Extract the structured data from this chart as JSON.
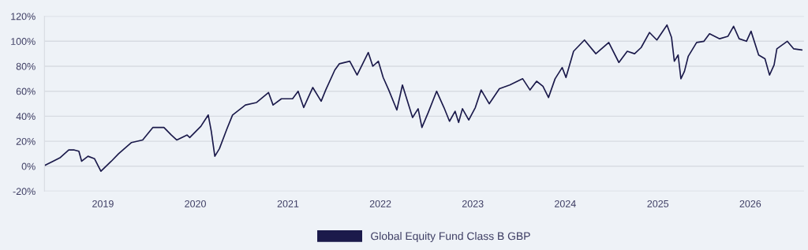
{
  "chart_data": {
    "type": "line",
    "grid": "y",
    "legend": "bottom",
    "xlim": [
      "2018-05-15",
      "2026-08-01"
    ],
    "xticks": [
      {
        "value": "2019-01-01",
        "label": "2019"
      },
      {
        "value": "2020-01-01",
        "label": "2020"
      },
      {
        "value": "2021-01-01",
        "label": "2021"
      },
      {
        "value": "2022-01-01",
        "label": "2022"
      },
      {
        "value": "2023-01-01",
        "label": "2023"
      },
      {
        "value": "2024-01-01",
        "label": "2024"
      },
      {
        "value": "2025-01-01",
        "label": "2025"
      },
      {
        "value": "2026-01-01",
        "label": "2026"
      }
    ],
    "ylim": [
      -20,
      120
    ],
    "yticks": [
      {
        "value": -20,
        "label": "-20%"
      },
      {
        "value": 0,
        "label": "0%"
      },
      {
        "value": 20,
        "label": "20%"
      },
      {
        "value": 40,
        "label": "40%"
      },
      {
        "value": 60,
        "label": "60%"
      },
      {
        "value": 80,
        "label": "80%"
      },
      {
        "value": 100,
        "label": "100%"
      },
      {
        "value": 120,
        "label": "120%"
      }
    ],
    "x": [
      "2018-05-16",
      "2018-06-18",
      "2018-07-17",
      "2018-08-19",
      "2018-09-10",
      "2018-09-28",
      "2018-10-09",
      "2018-11-03",
      "2018-11-29",
      "2018-12-24",
      "2019-02-03",
      "2019-03-04",
      "2019-04-24",
      "2019-06-07",
      "2019-07-17",
      "2019-08-30",
      "2019-09-28",
      "2019-10-20",
      "2019-11-29",
      "2019-12-10",
      "2020-01-23",
      "2020-02-21",
      "2020-03-04",
      "2020-03-18",
      "2020-04-05",
      "2020-05-05",
      "2020-05-27",
      "2020-07-17",
      "2020-08-30",
      "2020-10-16",
      "2020-11-03",
      "2020-12-06",
      "2021-01-19",
      "2021-02-10",
      "2021-03-04",
      "2021-04-09",
      "2021-05-12",
      "2021-05-30",
      "2021-07-05",
      "2021-07-23",
      "2021-09-02",
      "2021-10-01",
      "2021-11-14",
      "2021-12-02",
      "2021-12-24",
      "2022-01-12",
      "2022-02-03",
      "2022-03-07",
      "2022-03-29",
      "2022-05-08",
      "2022-05-30",
      "2022-06-14",
      "2022-07-09",
      "2022-08-11",
      "2022-09-09",
      "2022-10-01",
      "2022-10-23",
      "2022-11-06",
      "2022-11-21",
      "2022-12-16",
      "2023-01-11",
      "2023-02-03",
      "2023-03-07",
      "2023-04-16",
      "2023-05-27",
      "2023-07-17",
      "2023-08-15",
      "2023-09-10",
      "2023-10-05",
      "2023-10-27",
      "2023-11-22",
      "2023-12-20",
      "2024-01-04",
      "2024-02-03",
      "2024-03-17",
      "2024-05-01",
      "2024-06-21",
      "2024-07-31",
      "2024-09-02",
      "2024-10-01",
      "2024-10-27",
      "2024-11-29",
      "2024-12-28",
      "2025-02-06",
      "2025-02-24",
      "2025-03-07",
      "2025-03-22",
      "2025-04-02",
      "2025-04-16",
      "2025-05-01",
      "2025-06-03",
      "2025-07-02",
      "2025-07-24",
      "2025-09-02",
      "2025-10-05",
      "2025-10-27",
      "2025-11-18",
      "2025-12-17",
      "2026-01-04",
      "2026-02-03",
      "2026-02-28",
      "2026-03-18",
      "2026-04-05",
      "2026-04-16",
      "2026-05-27",
      "2026-06-21",
      "2026-07-24"
    ],
    "series": [
      {
        "name": "Global Equity Fund Class B GBP",
        "color": "#1b1a4b",
        "values": [
          0.6,
          4,
          7,
          13,
          13,
          12,
          4,
          8,
          6,
          -4,
          4,
          10,
          19,
          21,
          31,
          31,
          25,
          21,
          25,
          23,
          32,
          41,
          28,
          8,
          14,
          30,
          41,
          49,
          51,
          59,
          49,
          54,
          54,
          60,
          47,
          63,
          52,
          61,
          77,
          82,
          84,
          73,
          91,
          80,
          84,
          71,
          61,
          45,
          65,
          39,
          46,
          31,
          43,
          60,
          47,
          36,
          44,
          35,
          46,
          37,
          47,
          61,
          50,
          62,
          65,
          70,
          61,
          68,
          64,
          55,
          70,
          79,
          71,
          92,
          101,
          90,
          99,
          83,
          92,
          90,
          95,
          107,
          101,
          113,
          103,
          84,
          89,
          70,
          76,
          88,
          99,
          100,
          106,
          102,
          104,
          112,
          102,
          100,
          108,
          89,
          86,
          73,
          81,
          94,
          100,
          94,
          93
        ]
      }
    ]
  }
}
